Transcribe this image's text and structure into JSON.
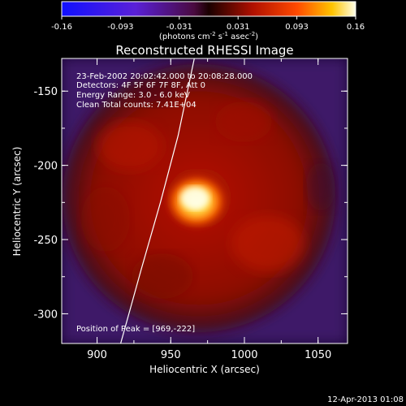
{
  "colorbar": {
    "ticks": [
      "-0.16",
      "-0.093",
      "-0.031",
      "0.031",
      "0.093",
      "0.16"
    ],
    "units_text": "(photons cm",
    "units_exp1": "-2",
    "units_mid1": " s",
    "units_exp2": "-1",
    "units_mid2": " asec",
    "units_exp3": "-2",
    "units_end": ")"
  },
  "chart_data": {
    "type": "heatmap",
    "title": "Reconstructed RHESSI Image",
    "xlabel": "Heliocentric X (arcsec)",
    "ylabel": "Heliocentric Y (arcsec)",
    "xlim": [
      876,
      1070
    ],
    "ylim": [
      -320,
      -128
    ],
    "xticks": [
      900,
      950,
      1000,
      1050
    ],
    "yticks": [
      -150,
      -200,
      -250,
      -300
    ],
    "colorbar_range": [
      -0.16,
      0.16
    ],
    "colormap": "hot-with-blue-negatives",
    "peak": {
      "x": 969,
      "y": -222
    },
    "limb_curve_points": [
      [
        916,
        -320
      ],
      [
        930,
        -270
      ],
      [
        943,
        -225
      ],
      [
        955,
        -180
      ],
      [
        966,
        -128
      ]
    ]
  },
  "annotations": {
    "time_range": "23-Feb-2002 20:02:42.000 to 20:08:28.000",
    "detectors": "Detectors: 4F 5F 6F 7F 8F, Att 0",
    "energy": "Energy Range: 3.0 - 6.0 keV",
    "clean": "Clean     Total counts: 7.41E+04",
    "peak_position": "Position of Peak = [969,-222]"
  },
  "footer": {
    "timestamp": "12-Apr-2013 01:08"
  }
}
